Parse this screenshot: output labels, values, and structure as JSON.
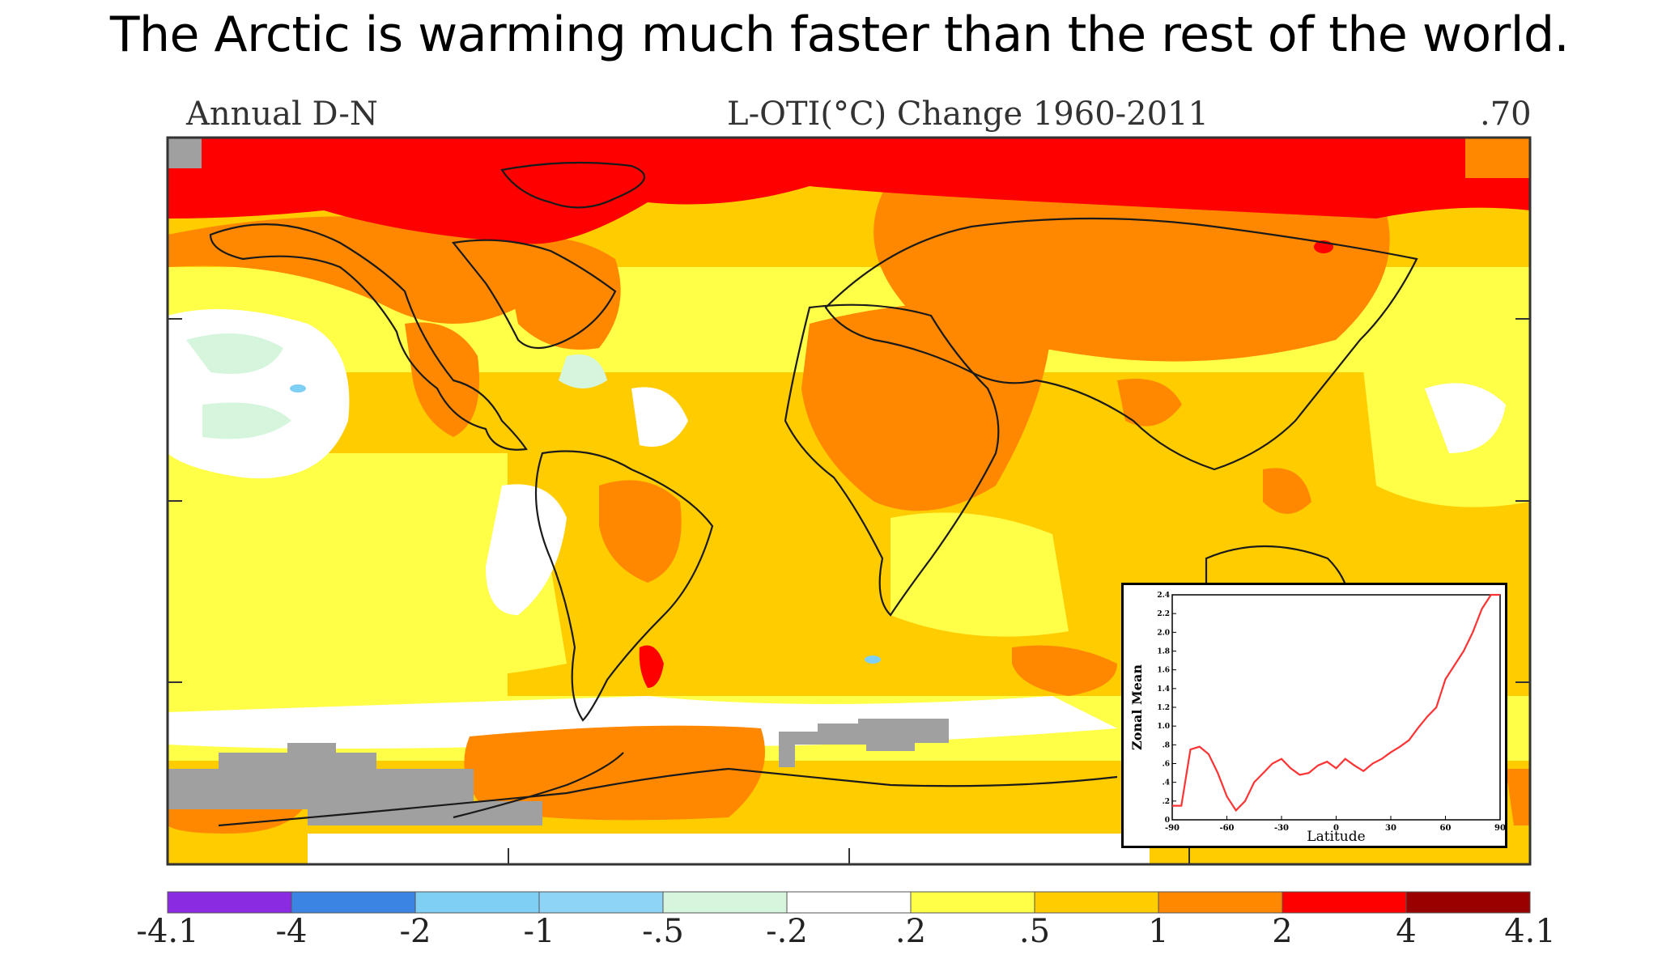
{
  "headline": "The Arctic is warming much faster than the rest of the world.",
  "map": {
    "header_left": "Annual D-N",
    "header_center": "L-OTI(°C) Change 1960-2011",
    "header_right": ".70"
  },
  "legend": {
    "colors": [
      "#8a2be2",
      "#3b84e3",
      "#7fcff5",
      "#8ed4f7",
      "#d6f5dd",
      "#ffffff",
      "#ffff48",
      "#ffcc00",
      "#ff8800",
      "#ff0000",
      "#990000"
    ],
    "ticks": [
      "-4.1",
      "-4",
      "-2",
      "-1",
      "-.5",
      "-.2",
      ".2",
      ".5",
      "1",
      "2",
      "4",
      "4.1"
    ]
  },
  "inset": {
    "xlabel": "Latitude",
    "ylabel": "Zonal Mean",
    "xticks": [
      "-90",
      "-60",
      "-30",
      "0",
      "30",
      "60",
      "90"
    ],
    "yticks": [
      "2.4",
      "2.2",
      "2.0",
      "1.8",
      "1.6",
      "1.4",
      "1.2",
      "1.0",
      ".8",
      ".6",
      ".4",
      ".2",
      "0"
    ],
    "line_color": "#ff3333",
    "curve": {
      "lat": [
        -90,
        -85,
        -80,
        -75,
        -70,
        -65,
        -60,
        -55,
        -50,
        -45,
        -40,
        -35,
        -30,
        -25,
        -20,
        -15,
        -10,
        -5,
        0,
        5,
        10,
        15,
        20,
        25,
        30,
        35,
        40,
        45,
        50,
        55,
        60,
        65,
        70,
        75,
        80,
        85,
        90
      ],
      "value": [
        0.15,
        0.15,
        0.75,
        0.78,
        0.7,
        0.5,
        0.25,
        0.1,
        0.2,
        0.4,
        0.5,
        0.6,
        0.65,
        0.55,
        0.48,
        0.5,
        0.58,
        0.62,
        0.55,
        0.65,
        0.58,
        0.52,
        0.6,
        0.65,
        0.72,
        0.78,
        0.85,
        0.98,
        1.1,
        1.2,
        1.5,
        1.65,
        1.8,
        2.0,
        2.25,
        2.4,
        2.4
      ]
    }
  }
}
